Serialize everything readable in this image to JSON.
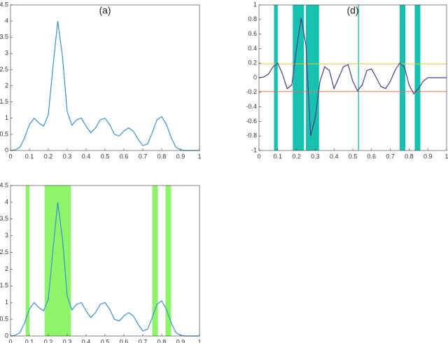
{
  "chart_data": [
    {
      "type": "line",
      "title": "(a)",
      "x": [
        0,
        0.025,
        0.05,
        0.075,
        0.1,
        0.125,
        0.15,
        0.175,
        0.2,
        0.225,
        0.25,
        0.275,
        0.3,
        0.325,
        0.35,
        0.375,
        0.4,
        0.425,
        0.45,
        0.475,
        0.5,
        0.525,
        0.55,
        0.575,
        0.6,
        0.625,
        0.65,
        0.675,
        0.7,
        0.725,
        0.75,
        0.775,
        0.8,
        0.825,
        0.85,
        0.875,
        0.9,
        0.925,
        0.95,
        0.975,
        1
      ],
      "series": [
        {
          "color": "#3a8fd0",
          "values": [
            0,
            0.02,
            0.1,
            0.4,
            0.8,
            1.0,
            0.85,
            0.75,
            1.1,
            2.6,
            4.0,
            2.9,
            1.2,
            0.78,
            0.95,
            1.0,
            0.75,
            0.55,
            0.7,
            0.95,
            1.0,
            0.8,
            0.5,
            0.45,
            0.6,
            0.7,
            0.6,
            0.35,
            0.15,
            0.2,
            0.55,
            0.95,
            1.05,
            0.8,
            0.4,
            0.1,
            0.02,
            0,
            0,
            0,
            0
          ]
        }
      ],
      "xlim": [
        0,
        1
      ],
      "xticks": [
        0,
        0.1,
        0.2,
        0.3,
        0.4,
        0.5,
        0.6,
        0.7,
        0.8,
        0.9,
        1
      ],
      "ylim": [
        0,
        4.5
      ],
      "yticks": [
        0,
        0.5,
        1,
        1.5,
        2,
        2.5,
        3,
        3.5,
        4,
        4.5
      ]
    },
    {
      "type": "line",
      "title": "(d)",
      "x": [
        0,
        0.025,
        0.05,
        0.075,
        0.1,
        0.125,
        0.15,
        0.175,
        0.2,
        0.225,
        0.25,
        0.275,
        0.3,
        0.325,
        0.35,
        0.375,
        0.4,
        0.425,
        0.45,
        0.475,
        0.5,
        0.525,
        0.55,
        0.575,
        0.6,
        0.625,
        0.65,
        0.675,
        0.7,
        0.725,
        0.75,
        0.775,
        0.8,
        0.825,
        0.85,
        0.875,
        0.9,
        0.925,
        0.95,
        0.975,
        1
      ],
      "series": [
        {
          "color": "#4b3c8c",
          "values": [
            0,
            0.01,
            0.05,
            0.15,
            0.2,
            0.05,
            -0.15,
            -0.1,
            0.4,
            0.82,
            0.45,
            -0.8,
            -0.55,
            -0.05,
            0.15,
            0.1,
            -0.15,
            0,
            0.15,
            0.18,
            -0.05,
            -0.18,
            -0.1,
            0.1,
            0.12,
            0,
            -0.12,
            -0.15,
            -0.05,
            0.1,
            0.2,
            0.15,
            -0.1,
            -0.22,
            -0.15,
            -0.05,
            0,
            0,
            0,
            0,
            0
          ]
        }
      ],
      "bands": [
        [
          0.08,
          0.1
        ],
        [
          0.18,
          0.24
        ],
        [
          0.25,
          0.32
        ],
        [
          0.528,
          0.533
        ],
        [
          0.75,
          0.78
        ],
        [
          0.83,
          0.86
        ]
      ],
      "band_color": "#18c0b0",
      "hlines": [
        0.19,
        -0.19
      ],
      "hline_colors": [
        "#e6c64a",
        "#e0785a"
      ],
      "xlim": [
        0,
        1
      ],
      "xticks": [
        0,
        0.1,
        0.2,
        0.3,
        0.4,
        0.5,
        0.6,
        0.7,
        0.8,
        0.9,
        1
      ],
      "ylim": [
        -1,
        1
      ],
      "yticks": [
        -1,
        -0.8,
        -0.6,
        -0.4,
        -0.2,
        0,
        0.2,
        0.4,
        0.6,
        0.8,
        1
      ]
    },
    {
      "type": "line",
      "x": [
        0,
        0.025,
        0.05,
        0.075,
        0.1,
        0.125,
        0.15,
        0.175,
        0.2,
        0.225,
        0.25,
        0.275,
        0.3,
        0.325,
        0.35,
        0.375,
        0.4,
        0.425,
        0.45,
        0.475,
        0.5,
        0.525,
        0.55,
        0.575,
        0.6,
        0.625,
        0.65,
        0.675,
        0.7,
        0.725,
        0.75,
        0.775,
        0.8,
        0.825,
        0.85,
        0.875,
        0.9,
        0.925,
        0.95,
        0.975,
        1
      ],
      "series": [
        {
          "color": "#3a8fd0",
          "values": [
            0,
            0.02,
            0.1,
            0.4,
            0.8,
            1.0,
            0.85,
            0.75,
            1.1,
            2.6,
            4.0,
            2.9,
            1.2,
            0.78,
            0.95,
            1.0,
            0.75,
            0.55,
            0.7,
            0.95,
            1.0,
            0.8,
            0.5,
            0.45,
            0.6,
            0.7,
            0.6,
            0.35,
            0.15,
            0.2,
            0.55,
            0.95,
            1.05,
            0.8,
            0.4,
            0.1,
            0.02,
            0,
            0,
            0,
            0
          ]
        }
      ],
      "bands": [
        [
          0.08,
          0.1
        ],
        [
          0.18,
          0.32
        ],
        [
          0.75,
          0.78
        ],
        [
          0.82,
          0.85
        ]
      ],
      "band_color": "#8ef46a",
      "xlim": [
        0,
        1
      ],
      "xticks": [
        0,
        0.1,
        0.2,
        0.3,
        0.4,
        0.5,
        0.6,
        0.7,
        0.8,
        0.9,
        1
      ],
      "ylim": [
        0,
        4.5
      ],
      "yticks": [
        0,
        0.5,
        1,
        1.5,
        2,
        2.5,
        3,
        3.5,
        4,
        4.5
      ]
    }
  ]
}
